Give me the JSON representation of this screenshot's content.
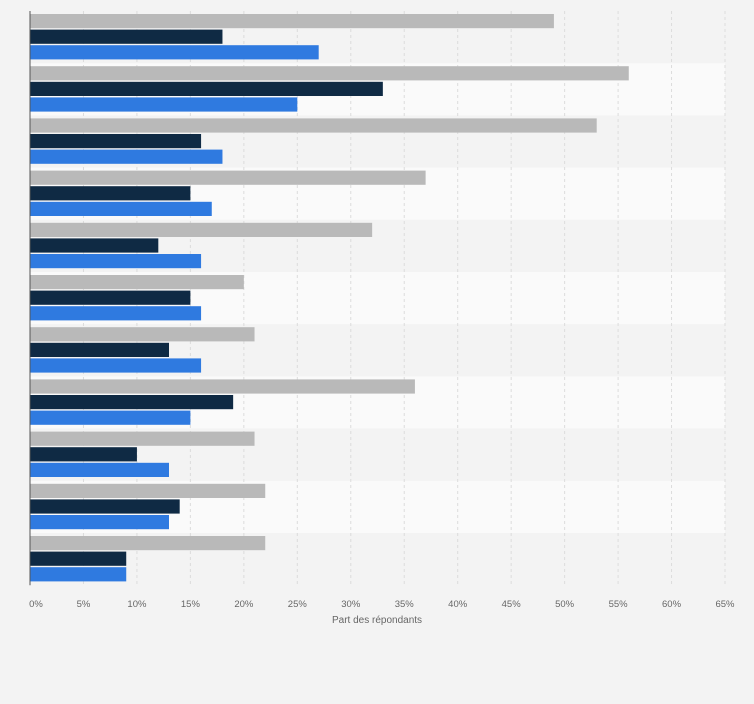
{
  "chart_data": {
    "type": "bar",
    "orientation": "horizontal",
    "categories": [
      "",
      "",
      "",
      "",
      "",
      "",
      "",
      "",
      "",
      "",
      ""
    ],
    "series": [
      {
        "values": [
          49,
          56,
          53,
          37,
          32,
          20,
          21,
          36,
          21,
          22,
          22
        ]
      },
      {
        "values": [
          18,
          33,
          16,
          15,
          12,
          15,
          13,
          19,
          10,
          14,
          9
        ]
      },
      {
        "values": [
          27,
          25,
          18,
          17,
          16,
          16,
          16,
          15,
          13,
          13,
          9
        ]
      }
    ],
    "colors": [
      "#b9b9b9",
      "#0f2a44",
      "#2f7ae0"
    ],
    "xlabel": "Part des répondants",
    "xlim": [
      0,
      65
    ],
    "xticks": [
      0,
      5,
      10,
      15,
      20,
      25,
      30,
      35,
      40,
      45,
      50,
      55,
      60,
      65
    ],
    "tick_labels": [
      "0%",
      "5%",
      "10%",
      "15%",
      "20%",
      "25%",
      "30%",
      "35%",
      "40%",
      "45%",
      "50%",
      "55%",
      "60%",
      "65%"
    ],
    "grid": true,
    "legend": false
  }
}
